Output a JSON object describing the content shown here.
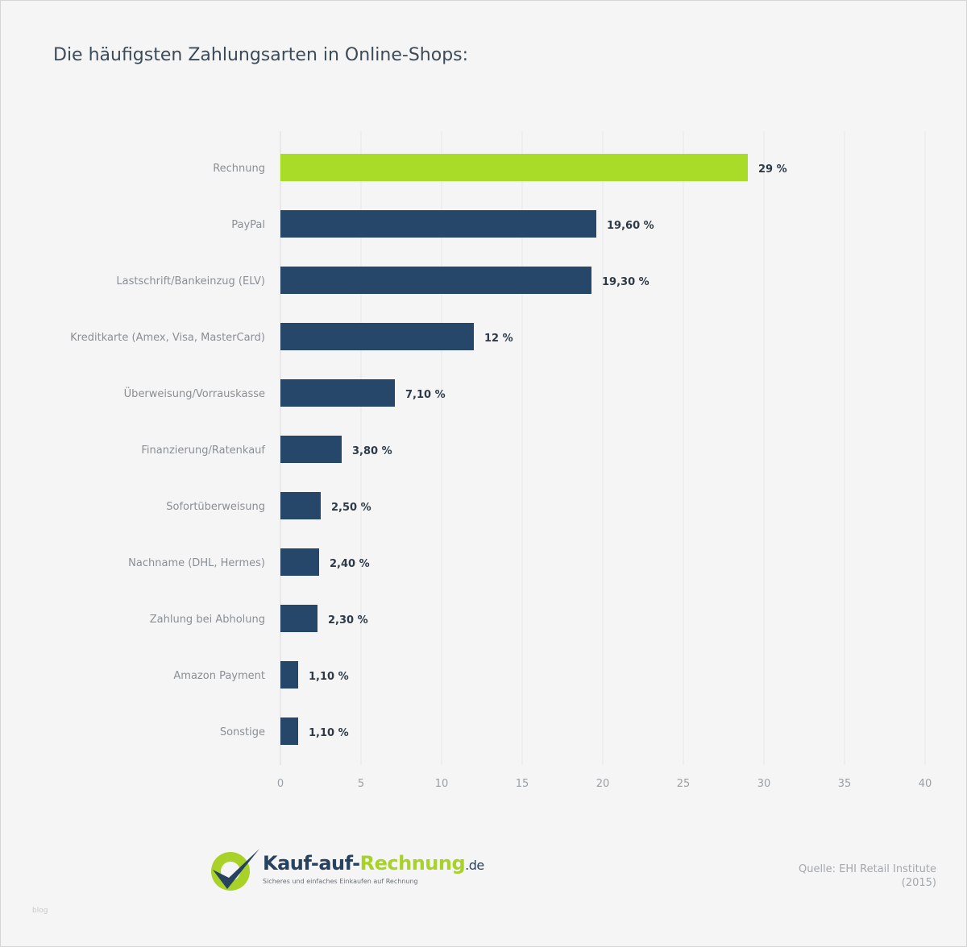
{
  "title": "Die häufigsten Zahlungsarten in Online-Shops:",
  "chart_data": {
    "type": "bar",
    "orientation": "horizontal",
    "categories": [
      "Rechnung",
      "PayPal",
      "Lastschrift/Bankeinzug (ELV)",
      "Kreditkarte (Amex, Visa, MasterCard)",
      "Überweisung/Vorrauskasse",
      "Finanzierung/Ratenkauf",
      "Sofortüberweisung",
      "Nachname (DHL, Hermes)",
      "Zahlung bei Abholung",
      "Amazon Payment",
      "Sonstige"
    ],
    "values": [
      29,
      19.6,
      19.3,
      12,
      7.1,
      3.8,
      2.5,
      2.4,
      2.3,
      1.1,
      1.1
    ],
    "data_labels": [
      "29 %",
      "19,60 %",
      "19,30 %",
      "12 %",
      "7,10 %",
      "3,80 %",
      "2,50 %",
      "2,40 %",
      "2,30 %",
      "1,10 %",
      "1,10 %"
    ],
    "xlim": [
      0,
      40
    ],
    "xticks": [
      "0",
      "5",
      "10",
      "15",
      "20",
      "25",
      "30",
      "35",
      "40"
    ],
    "grid": true,
    "colors": {
      "highlight": "#a8dc28",
      "default": "#26476a"
    }
  },
  "logo": {
    "brand_a": "Kauf-auf-",
    "brand_b": "Rechnung",
    "brand_c": ".de",
    "tagline": "Sicheres und einfaches Einkaufen auf Rechnung"
  },
  "source": {
    "line1": "Quelle: EHI Retail Institute",
    "line2": "(2015)"
  },
  "watermark": "blog"
}
